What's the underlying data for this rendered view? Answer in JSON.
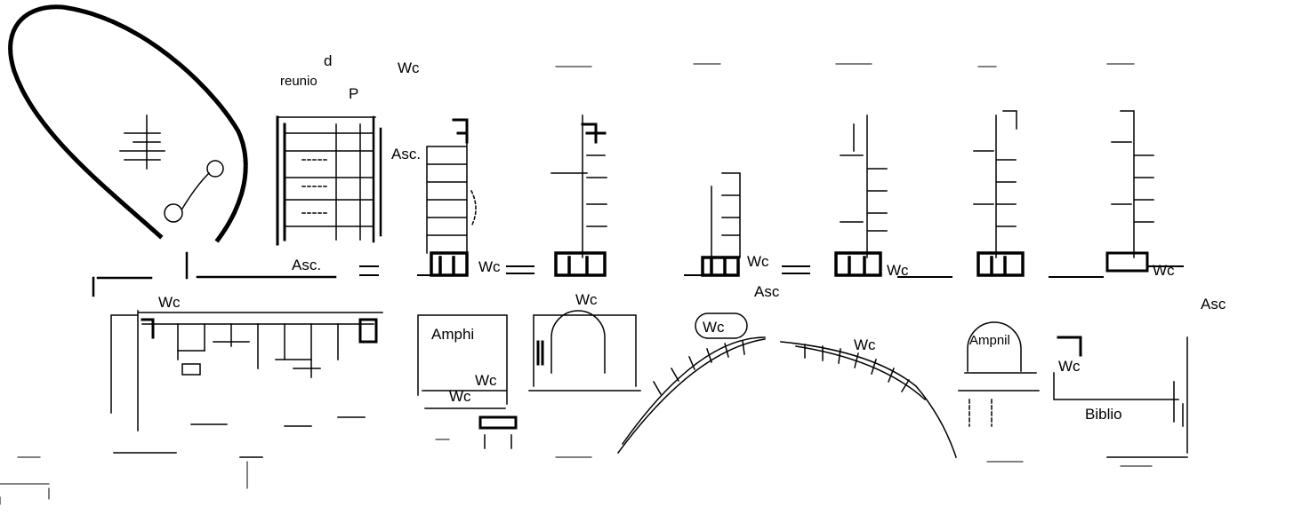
{
  "labels": {
    "top_d": "d",
    "reunio": "reunio",
    "p_label": "P",
    "wc_top": "Wc",
    "asc_top_right": "Asc.",
    "asc_left_block": "Asc.",
    "wc_row_1": "Wc",
    "wc_row_2": "Wc",
    "wc_row_3": "Wc",
    "wc_row_4": "Wc",
    "wc_under_block": "Wc",
    "asc_mid": "Asc",
    "asc_right": "Asc",
    "wc_left_wing": "Wc",
    "amphi_left": "Amphi",
    "wc_amphi_left_a": "Wc",
    "wc_amphi_left_b": "Wc",
    "wc_rounded": "Wc",
    "wc_arc_right": "Wc",
    "amphi_right": "Ampnil",
    "wc_biblio": "Wc",
    "biblio": "Biblio"
  },
  "colors": {
    "ink": "#000000",
    "paper": "#ffffff"
  }
}
